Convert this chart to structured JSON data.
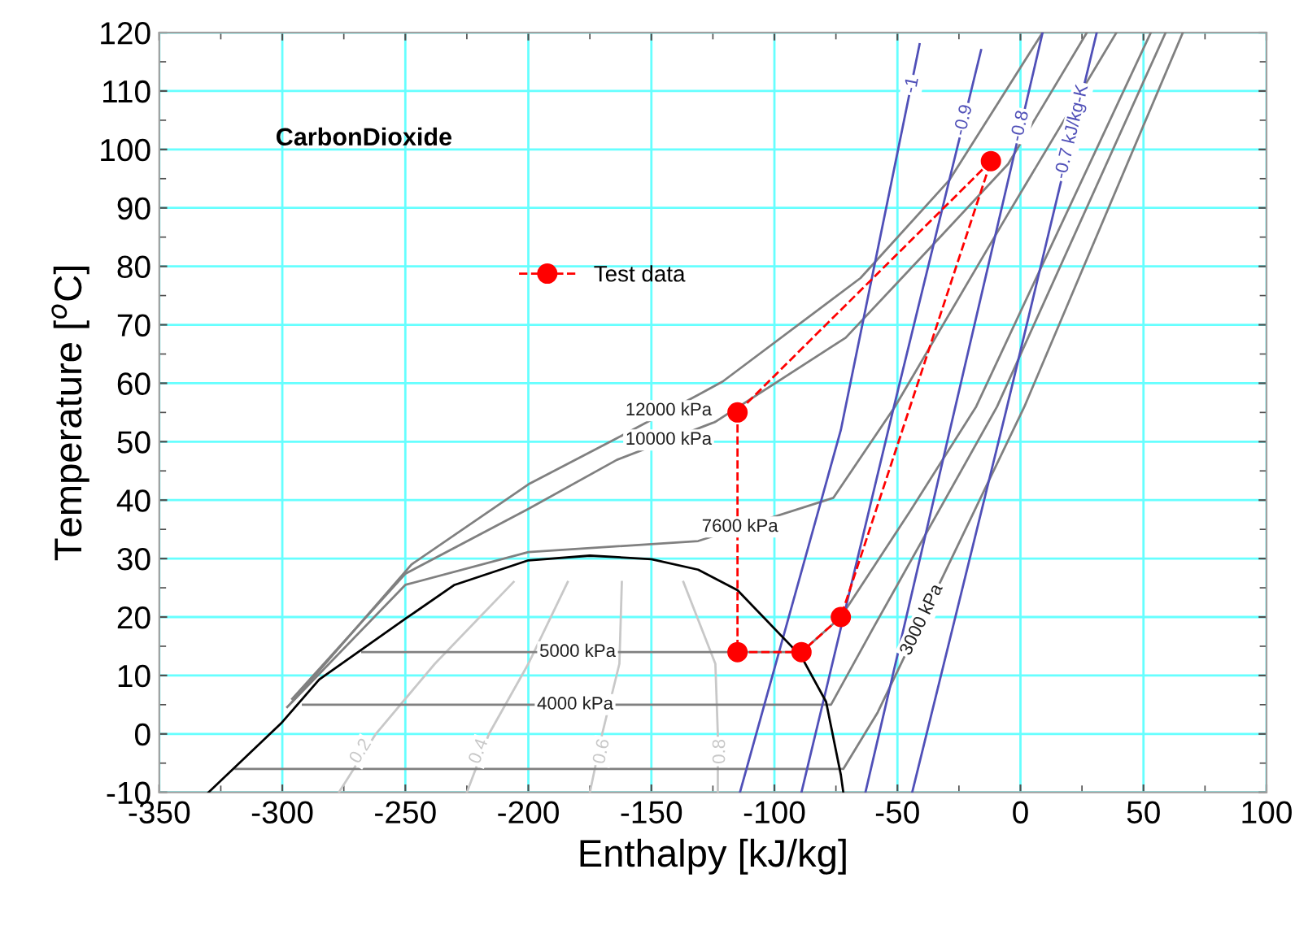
{
  "chart_data": {
    "type": "line",
    "xlabel": "Enthalpy [kJ/kg]",
    "ylabel": "Temperature [$^{o}$C]",
    "xlim": [
      -350,
      100
    ],
    "xticks": [
      -350,
      -300,
      -250,
      -200,
      -150,
      -100,
      -50,
      0,
      50,
      100
    ],
    "ylim": [
      -10,
      120
    ],
    "yticks": [
      -10,
      0,
      10,
      20,
      30,
      40,
      50,
      60,
      70,
      80,
      90,
      100,
      110,
      120
    ],
    "grid": true,
    "legend": "left",
    "series": [
      {
        "color": "#c8c8c8",
        "x": [
          -277,
          -262,
          -238,
          -206
        ],
        "values": [
          -10,
          0,
          12,
          26
        ]
      },
      {
        "color": "#c8c8c8",
        "x": [
          -225,
          -216,
          -200,
          -184
        ],
        "values": [
          -10,
          0,
          12,
          26
        ]
      },
      {
        "color": "#c8c8c8",
        "x": [
          -175,
          -170,
          -163,
          -162
        ],
        "values": [
          -10,
          0,
          12,
          26
        ]
      },
      {
        "color": "#c8c8c8",
        "x": [
          -123,
          -123,
          -124,
          -137
        ],
        "values": [
          -10,
          0,
          12,
          26
        ]
      },
      {
        "color": "#808080",
        "x": [
          -296,
          -247.5,
          -200,
          -164,
          -131,
          -121,
          -65,
          -29,
          9
        ],
        "values": [
          5.5,
          29,
          42.7,
          50.6,
          58,
          60.3,
          78,
          94.7,
          120
        ]
      },
      {
        "color": "#808080",
        "x": [
          -296,
          -250,
          -200,
          -164,
          -124,
          -71,
          -38,
          -5,
          27
        ],
        "values": [
          6,
          27.4,
          38.5,
          46.9,
          53.4,
          67.8,
          82.6,
          97.5,
          120
        ]
      },
      {
        "color": "#808080",
        "x": [
          -298,
          -250,
          -200,
          -131,
          -76,
          -51,
          -5,
          39
        ],
        "values": [
          4.6,
          25.5,
          31.1,
          33,
          40.4,
          56,
          89,
          120
        ]
      },
      {
        "color": "#808080",
        "x": [
          -267.5,
          -89,
          -73,
          -45,
          -18,
          53
        ],
        "values": [
          14,
          14,
          20,
          38,
          56,
          120
        ]
      },
      {
        "color": "#808080",
        "x": [
          -291.6,
          -77,
          -60,
          -9.5,
          59
        ],
        "values": [
          5,
          5,
          18,
          56,
          120
        ]
      },
      {
        "color": "#808080",
        "x": [
          -319,
          -72,
          -58,
          1.6,
          66
        ],
        "values": [
          -6,
          -6,
          3.7,
          56,
          120
        ]
      },
      {
        "color": "#5050b8",
        "x": [
          -114,
          -73,
          -41
        ],
        "values": [
          -10,
          52,
          118
        ]
      },
      {
        "color": "#5050b8",
        "x": [
          -89,
          -52,
          -16
        ],
        "values": [
          -10,
          55,
          117
        ]
      },
      {
        "color": "#5050b8",
        "x": [
          -63,
          -27,
          9
        ],
        "values": [
          -10,
          55,
          120
        ]
      },
      {
        "color": "#5050b8",
        "x": [
          -44,
          -6,
          31
        ],
        "values": [
          -10,
          55,
          120
        ]
      },
      {
        "color": "#000000",
        "x": [
          -330,
          -300.5,
          -285,
          -250,
          -230,
          -200,
          -175,
          -150,
          -131,
          -115,
          -89,
          -79,
          -73,
          -72
        ],
        "values": [
          -10,
          1.8,
          9.3,
          19.7,
          25.5,
          29.7,
          30.5,
          29.9,
          28.1,
          24.6,
          13.2,
          5.5,
          -7,
          -10
        ]
      },
      {
        "name": "Test data",
        "color": "#ff0000",
        "marker": "circle",
        "line_style": "dashed",
        "x": [
          -115,
          -115,
          -89,
          -73,
          -12
        ],
        "values": [
          55,
          14,
          14,
          20,
          98
        ]
      },
      {
        "color": "#ff0000",
        "line_style": "dashed",
        "x": [
          -12,
          -115
        ],
        "values": [
          98,
          55
        ]
      }
    ],
    "annotations": [
      "CarbonDioxide",
      {
        "text": "12000 kPa",
        "x": -143,
        "y": 55.3
      },
      {
        "text": "10000 kPa",
        "x": -143,
        "y": 50.3
      },
      {
        "text": "7600 kPa",
        "x": -114,
        "y": 35.4
      },
      {
        "text": "5000 kPa",
        "x": -180,
        "y": 14
      },
      {
        "text": "4000 kPa",
        "x": -181,
        "y": 5
      },
      {
        "text": "3000 kPa",
        "x": -40,
        "y": 19.5
      },
      {
        "text": "-1",
        "x": -44,
        "y": 111
      },
      {
        "text": "-0.9",
        "x": -23,
        "y": 105
      },
      {
        "text": "-0.8",
        "x": 0,
        "y": 104
      },
      {
        "text": "-0.7 kJ/kg-K",
        "x": 21,
        "y": 103
      },
      {
        "text": "0.2",
        "x": -268,
        "y": -3
      },
      {
        "text": "0.4",
        "x": -220,
        "y": -3
      },
      {
        "text": "0.6",
        "x": -170,
        "y": -3
      },
      {
        "text": "0.8",
        "x": -122,
        "y": -3
      }
    ]
  }
}
